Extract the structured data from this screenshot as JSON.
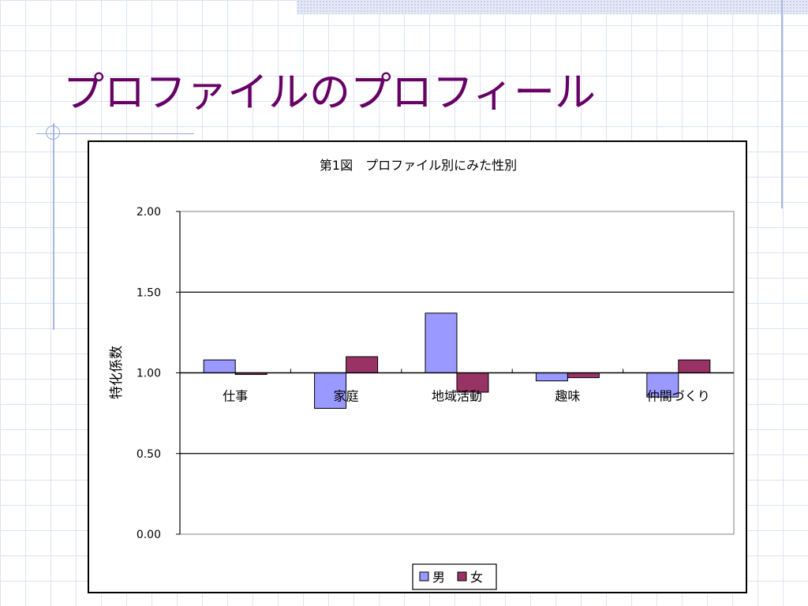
{
  "slide": {
    "title": "プロファイルのプロフィール"
  },
  "chart_data": {
    "type": "bar",
    "title": "第1図　プロファイル別にみた性別",
    "ylabel": "特化係数",
    "xlabel": "",
    "categories": [
      "仕事",
      "家庭",
      "地域活動",
      "趣味",
      "仲間づくり"
    ],
    "series": [
      {
        "name": "男",
        "color": "#9999ff",
        "values": [
          1.08,
          0.78,
          1.37,
          0.95,
          0.85
        ]
      },
      {
        "name": "女",
        "color": "#993366",
        "values": [
          0.99,
          1.1,
          0.88,
          0.97,
          1.08
        ]
      }
    ],
    "ylim": [
      0,
      2
    ],
    "yticks": [
      "0.00",
      "0.50",
      "1.00",
      "1.50",
      "2.00"
    ],
    "ytick_values": [
      0,
      0.5,
      1.0,
      1.5,
      2.0
    ],
    "baseline": 1.0,
    "grid": true,
    "legend": "bottom-center"
  }
}
